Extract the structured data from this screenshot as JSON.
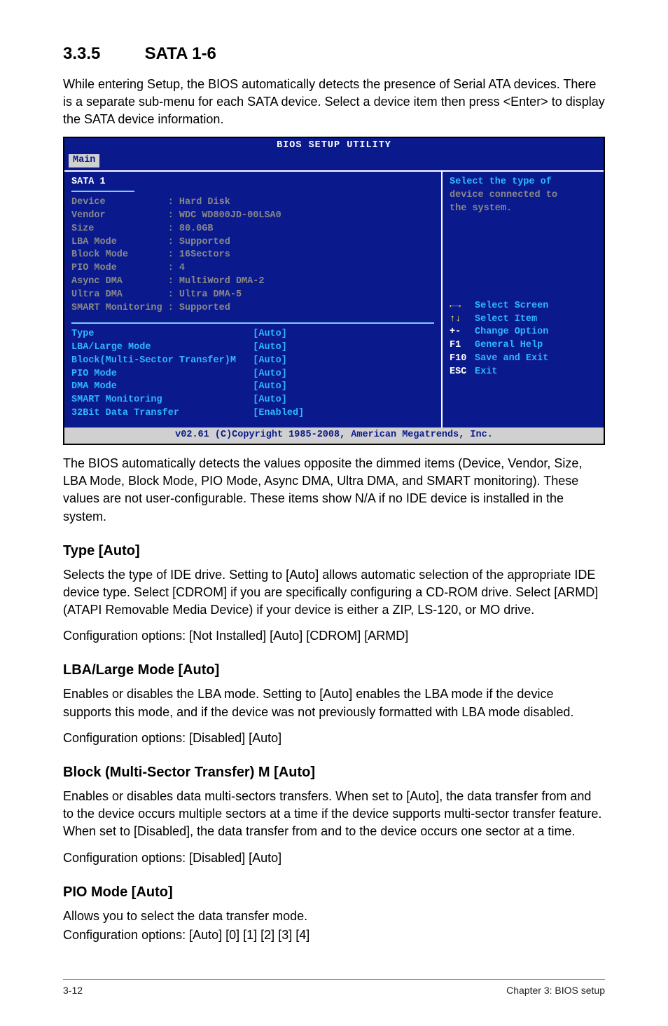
{
  "page": {
    "section_number": "3.3.5",
    "section_title": "SATA 1-6",
    "intro": "While entering Setup, the BIOS automatically detects the presence of Serial ATA devices. There is a separate sub-menu for each SATA device. Select a device item then press <Enter> to display the SATA device information.",
    "after_bios": "The BIOS automatically detects the values opposite the dimmed items (Device, Vendor, Size, LBA Mode, Block Mode, PIO Mode, Async DMA, Ultra DMA, and SMART monitoring). These values are not user-configurable. These items show N/A if no IDE device is installed in the system.",
    "subs": {
      "type": {
        "heading": "Type [Auto]",
        "p1": "Selects the type of IDE drive. Setting to [Auto] allows automatic selection of the appropriate IDE device type. Select [CDROM] if you are specifically configuring a CD-ROM drive. Select [ARMD] (ATAPI Removable Media Device) if your device is either a ZIP, LS-120, or MO drive.",
        "p2": "Configuration options: [Not Installed] [Auto] [CDROM] [ARMD]"
      },
      "lba": {
        "heading": "LBA/Large Mode [Auto]",
        "p1": "Enables or disables the LBA mode. Setting to [Auto] enables the LBA mode if the device supports this mode, and if the device was not previously formatted with LBA mode disabled.",
        "p2": "Configuration options: [Disabled] [Auto]"
      },
      "block": {
        "heading": "Block (Multi-Sector Transfer) M [Auto]",
        "p1": "Enables or disables data multi-sectors transfers. When set to [Auto], the data transfer from and to the device occurs multiple sectors at a time if the device supports multi-sector transfer feature. When set to [Disabled], the data transfer from and to the device occurs one sector at a time.",
        "p2": "Configuration options: [Disabled] [Auto]"
      },
      "pio": {
        "heading": "PIO Mode [Auto]",
        "p1": "Allows you to select the data transfer mode.",
        "p2": "Configuration options: [Auto] [0] [1] [2] [3] [4]"
      }
    },
    "footer_left": "3-12",
    "footer_right": "Chapter 3: BIOS setup"
  },
  "bios": {
    "colors": {
      "bg": "#0a1a8c",
      "tab_bg": "#d0d0d0",
      "tab_fg": "#0a1a8c",
      "text_white": "#ffffff",
      "text_dim": "#888888",
      "text_cyan": "#30b7ff",
      "text_yellow": "#ffff55",
      "hr": "#7fc9ff"
    },
    "title": "BIOS SETUP UTILITY",
    "active_tab": "Main",
    "panel_heading": "SATA 1",
    "dimmed_rows": [
      {
        "label": "Device",
        "value": ": Hard Disk"
      },
      {
        "label": "Vendor",
        "value": ": WDC WD800JD-00LSA0"
      },
      {
        "label": "Size",
        "value": ": 80.0GB"
      },
      {
        "label": "LBA Mode",
        "value": ": Supported"
      },
      {
        "label": "Block Mode",
        "value": ": 16Sectors"
      },
      {
        "label": "PIO Mode",
        "value": ": 4"
      },
      {
        "label": "Async DMA",
        "value": ": MultiWord DMA-2"
      },
      {
        "label": "Ultra DMA",
        "value": ": Ultra DMA-5"
      },
      {
        "label": "SMART Monitoring",
        "value": ": Supported"
      }
    ],
    "options": [
      {
        "label": "Type",
        "value": "[Auto]"
      },
      {
        "label": "LBA/Large Mode",
        "value": "[Auto]"
      },
      {
        "label": "Block(Multi-Sector Transfer)M",
        "value": "[Auto]"
      },
      {
        "label": "PIO Mode",
        "value": "[Auto]"
      },
      {
        "label": "DMA Mode",
        "value": "[Auto]"
      },
      {
        "label": "SMART Monitoring",
        "value": "[Auto]"
      },
      {
        "label": "32Bit Data Transfer",
        "value": "[Enabled]"
      }
    ],
    "help": {
      "line1": "Select the type of",
      "line2": "device connected to",
      "line3": "the system."
    },
    "nav": [
      {
        "key": "←→",
        "desc": "Select Screen",
        "arrow": true
      },
      {
        "key": "↑↓",
        "desc": "Select Item",
        "arrow": true
      },
      {
        "key": "+-",
        "desc": "Change Option"
      },
      {
        "key": "F1",
        "desc": "General Help"
      },
      {
        "key": "F10",
        "desc": "Save and Exit"
      },
      {
        "key": "ESC",
        "desc": "Exit"
      }
    ],
    "footer": "v02.61 (C)Copyright 1985-2008, American Megatrends, Inc."
  }
}
